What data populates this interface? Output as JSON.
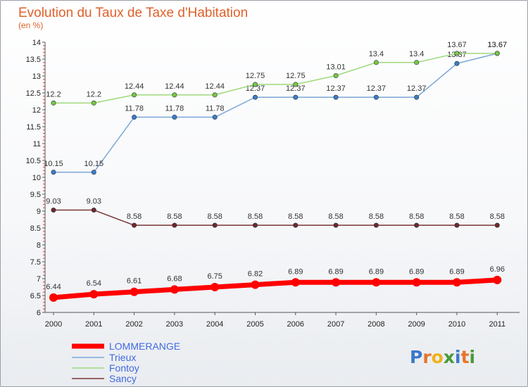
{
  "title": "Evolution du Taux de Taxe d'Habitation",
  "subtitle": "(en %)",
  "logo": {
    "letters": [
      {
        "ch": "P",
        "color": "#3b79c9"
      },
      {
        "ch": "r",
        "color": "#e8742a"
      },
      {
        "ch": "o",
        "color": "#f0b21b"
      },
      {
        "ch": "x",
        "color": "#4a9a3a"
      },
      {
        "ch": "i",
        "color": "#3b79c9"
      },
      {
        "ch": "t",
        "color": "#e8742a"
      },
      {
        "ch": "i",
        "color": "#4a9a3a"
      }
    ]
  },
  "chart_data": {
    "type": "line",
    "title": "Evolution du Taux de Taxe d'Habitation",
    "subtitle": "(en %)",
    "x": [
      "2000",
      "2001",
      "2002",
      "2003",
      "2004",
      "2005",
      "2006",
      "2007",
      "2008",
      "2009",
      "2010",
      "2011"
    ],
    "ylim": [
      6,
      14
    ],
    "yticks": [
      "6",
      "6.5",
      "7",
      "7.5",
      "8",
      "8.5",
      "9",
      "9.5",
      "10",
      "10.5",
      "11",
      "11.5",
      "12",
      "12.5",
      "13",
      "13.5",
      "14"
    ],
    "grid": false,
    "legend_position": "bottom-left",
    "series": [
      {
        "name": "LOMMERANGE",
        "color": "#ff0000",
        "legend_color": "#4169e1",
        "line_width": 7,
        "values": [
          6.44,
          6.54,
          6.61,
          6.68,
          6.75,
          6.82,
          6.89,
          6.89,
          6.89,
          6.89,
          6.89,
          6.96
        ],
        "labels": [
          "6.44",
          "6.54",
          "6.61",
          "6.68",
          "6.75",
          "6.82",
          "6.89",
          "6.89",
          "6.89",
          "6.89",
          "6.89",
          "6.96"
        ]
      },
      {
        "name": "Trieux",
        "color": "#7ba7d6",
        "marker_color": "#3a7dc4",
        "legend_color": "#4169e1",
        "line_width": 1.5,
        "values": [
          10.15,
          10.15,
          11.78,
          11.78,
          11.78,
          12.37,
          12.37,
          12.37,
          12.37,
          12.37,
          13.37,
          13.67
        ],
        "labels": [
          "10.15",
          "10.15",
          "11.78",
          "11.78",
          "11.78",
          "12.37",
          "12.37",
          "12.37",
          "12.37",
          "12.37",
          "13.37",
          "13.67"
        ]
      },
      {
        "name": "Fontoy",
        "color": "#9ed97a",
        "marker_color": "#76c840",
        "legend_color": "#4169e1",
        "line_width": 1.5,
        "values": [
          12.2,
          12.2,
          12.44,
          12.44,
          12.44,
          12.75,
          12.75,
          13.01,
          13.4,
          13.4,
          13.67,
          13.67
        ],
        "labels": [
          "12.2",
          "12.2",
          "12.44",
          "12.44",
          "12.44",
          "12.75",
          "12.75",
          "13.01",
          "13.4",
          "13.4",
          "13.67",
          "13.67"
        ]
      },
      {
        "name": "Sancy",
        "color": "#7a3535",
        "marker_color": "#6b2a2a",
        "legend_color": "#4169e1",
        "line_width": 1.5,
        "values": [
          9.03,
          9.03,
          8.58,
          8.58,
          8.58,
          8.58,
          8.58,
          8.58,
          8.58,
          8.58,
          8.58,
          8.58
        ],
        "labels": [
          "9.03",
          "9.03",
          "8.58",
          "8.58",
          "8.58",
          "8.58",
          "8.58",
          "8.58",
          "8.58",
          "8.58",
          "8.58",
          "8.58"
        ]
      }
    ]
  }
}
